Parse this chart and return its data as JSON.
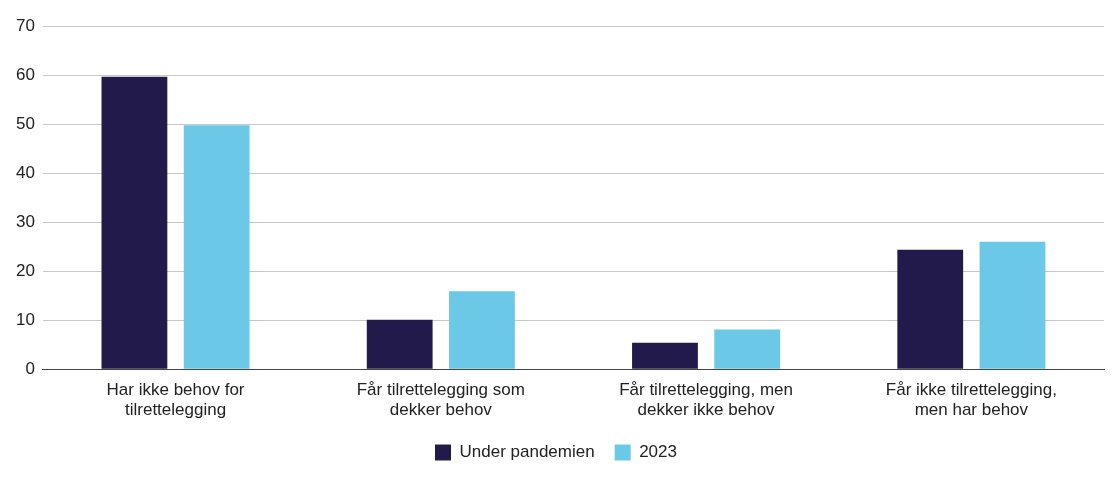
{
  "chart_data": {
    "type": "bar",
    "categories": [
      "Har ikke behov for tilrettelegging",
      "Får tilrettelegging som dekker behov",
      "Får tilrettelegging, men dekker ikke behov",
      "Får ikke tilrettelegging, men har behov"
    ],
    "series": [
      {
        "name": "Under pandemien",
        "color": "#211a4a",
        "values": [
          59.7,
          10.1,
          5.4,
          24.4
        ]
      },
      {
        "name": "2023",
        "color": "#6bc8e6",
        "values": [
          49.8,
          15.9,
          8.1,
          26
        ]
      }
    ],
    "ylim": [
      0,
      70
    ],
    "yticks": [
      0,
      10,
      20,
      30,
      40,
      50,
      60,
      70
    ],
    "grid": "y",
    "legend": "bottom"
  }
}
